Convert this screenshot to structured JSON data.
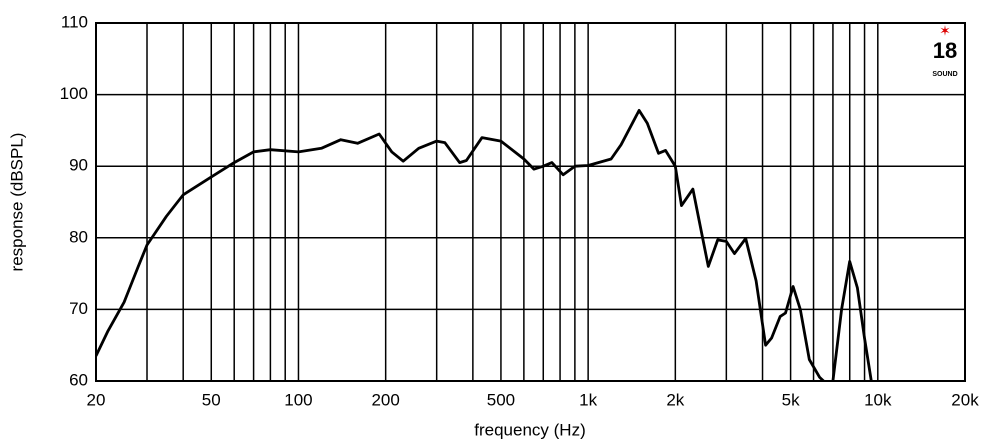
{
  "chart_data": {
    "type": "line",
    "xlabel": "frequency (Hz)",
    "ylabel": "response (dBSPL)",
    "xscale": "log",
    "xlim": [
      20,
      20000
    ],
    "ylim": [
      60,
      110
    ],
    "xticks": [
      20,
      50,
      100,
      200,
      500,
      {
        "value": 1000,
        "label": "1k"
      },
      {
        "value": 2000,
        "label": "2k"
      },
      {
        "value": 5000,
        "label": "5k"
      },
      {
        "value": 10000,
        "label": "10k"
      },
      {
        "value": 20000,
        "label": "20k"
      }
    ],
    "xgrid": [
      30,
      40,
      60,
      70,
      80,
      90,
      300,
      400,
      600,
      700,
      800,
      900,
      3000,
      4000,
      6000,
      7000,
      8000,
      9000
    ],
    "yticks": [
      60,
      70,
      80,
      90,
      100,
      110
    ],
    "grid": true,
    "color": "#000000",
    "logo": {
      "number": "18",
      "text": "SOUND"
    },
    "x": [
      20,
      22,
      25,
      28,
      30,
      35,
      40,
      50,
      60,
      70,
      80,
      100,
      120,
      140,
      160,
      190,
      210,
      230,
      260,
      300,
      320,
      360,
      380,
      430,
      500,
      600,
      650,
      700,
      750,
      820,
      900,
      1000,
      1200,
      1300,
      1500,
      1600,
      1750,
      1850,
      2000,
      2100,
      2300,
      2400,
      2600,
      2800,
      3000,
      3200,
      3500,
      3800,
      4100,
      4300,
      4600,
      4800,
      5100,
      5400,
      5800,
      6300,
      6500,
      6800,
      7000,
      7500,
      8000,
      8500,
      9000,
      9500
    ],
    "values": [
      63.5,
      67,
      71,
      76,
      79,
      83,
      86,
      88.5,
      90.5,
      92,
      92.3,
      92,
      92.5,
      93.7,
      93.2,
      94.5,
      92,
      90.7,
      92.5,
      93.5,
      93.3,
      90.5,
      90.8,
      94,
      93.5,
      91,
      89.6,
      90,
      90.5,
      88.8,
      90,
      90.1,
      91,
      93,
      97.8,
      96,
      91.8,
      92.2,
      90,
      84.5,
      86.8,
      83,
      76,
      79.7,
      79.5,
      77.8,
      79.9,
      74,
      65,
      66,
      69,
      69.5,
      73.2,
      70,
      63,
      60.5,
      60,
      null,
      60,
      70,
      76.7,
      73,
      66,
      60
    ]
  }
}
